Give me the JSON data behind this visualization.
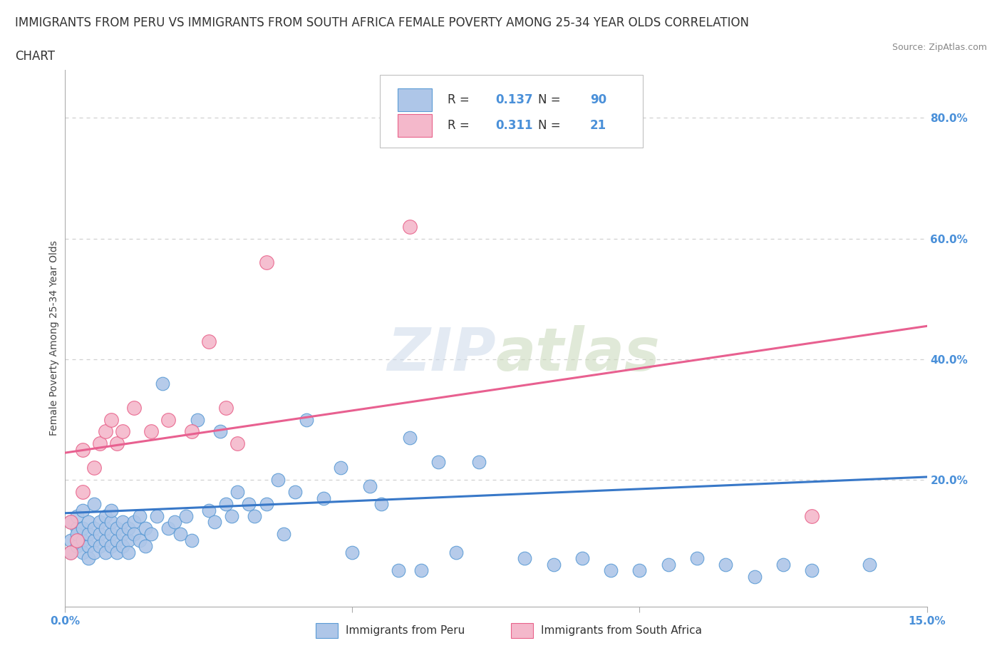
{
  "title_line1": "IMMIGRANTS FROM PERU VS IMMIGRANTS FROM SOUTH AFRICA FEMALE POVERTY AMONG 25-34 YEAR OLDS CORRELATION",
  "title_line2": "CHART",
  "source": "Source: ZipAtlas.com",
  "ylabel": "Female Poverty Among 25-34 Year Olds",
  "xlim": [
    0.0,
    0.15
  ],
  "ylim": [
    -0.01,
    0.88
  ],
  "right_yticks": [
    0.2,
    0.4,
    0.6,
    0.8
  ],
  "right_yticklabels": [
    "20.0%",
    "40.0%",
    "60.0%",
    "80.0%"
  ],
  "watermark": "ZIPatlas",
  "peru_R": "0.137",
  "peru_N": "90",
  "sa_R": "0.311",
  "sa_N": "21",
  "peru_color": "#aec6e8",
  "peru_edge_color": "#5b9bd5",
  "sa_color": "#f4b8cb",
  "sa_edge_color": "#e8628a",
  "peru_line_color": "#3878c8",
  "sa_line_color": "#e86090",
  "legend_label_peru": "Immigrants from Peru",
  "legend_label_sa": "Immigrants from South Africa",
  "peru_x": [
    0.001,
    0.001,
    0.001,
    0.002,
    0.002,
    0.002,
    0.002,
    0.003,
    0.003,
    0.003,
    0.003,
    0.004,
    0.004,
    0.004,
    0.004,
    0.005,
    0.005,
    0.005,
    0.005,
    0.006,
    0.006,
    0.006,
    0.007,
    0.007,
    0.007,
    0.007,
    0.008,
    0.008,
    0.008,
    0.008,
    0.009,
    0.009,
    0.009,
    0.01,
    0.01,
    0.01,
    0.011,
    0.011,
    0.011,
    0.012,
    0.012,
    0.013,
    0.013,
    0.014,
    0.014,
    0.015,
    0.016,
    0.017,
    0.018,
    0.019,
    0.02,
    0.021,
    0.022,
    0.023,
    0.025,
    0.026,
    0.027,
    0.028,
    0.029,
    0.03,
    0.032,
    0.033,
    0.035,
    0.037,
    0.038,
    0.04,
    0.042,
    0.045,
    0.048,
    0.05,
    0.053,
    0.055,
    0.058,
    0.06,
    0.062,
    0.065,
    0.068,
    0.072,
    0.08,
    0.085,
    0.09,
    0.095,
    0.1,
    0.105,
    0.11,
    0.115,
    0.12,
    0.125,
    0.13,
    0.14
  ],
  "peru_y": [
    0.13,
    0.1,
    0.08,
    0.12,
    0.09,
    0.11,
    0.14,
    0.1,
    0.12,
    0.08,
    0.15,
    0.09,
    0.11,
    0.13,
    0.07,
    0.1,
    0.12,
    0.08,
    0.16,
    0.11,
    0.13,
    0.09,
    0.1,
    0.12,
    0.14,
    0.08,
    0.11,
    0.13,
    0.09,
    0.15,
    0.1,
    0.12,
    0.08,
    0.11,
    0.13,
    0.09,
    0.1,
    0.12,
    0.08,
    0.13,
    0.11,
    0.14,
    0.1,
    0.12,
    0.09,
    0.11,
    0.14,
    0.36,
    0.12,
    0.13,
    0.11,
    0.14,
    0.1,
    0.3,
    0.15,
    0.13,
    0.28,
    0.16,
    0.14,
    0.18,
    0.16,
    0.14,
    0.16,
    0.2,
    0.11,
    0.18,
    0.3,
    0.17,
    0.22,
    0.08,
    0.19,
    0.16,
    0.05,
    0.27,
    0.05,
    0.23,
    0.08,
    0.23,
    0.07,
    0.06,
    0.07,
    0.05,
    0.05,
    0.06,
    0.07,
    0.06,
    0.04,
    0.06,
    0.05,
    0.06
  ],
  "sa_x": [
    0.001,
    0.001,
    0.002,
    0.003,
    0.003,
    0.005,
    0.006,
    0.007,
    0.008,
    0.009,
    0.01,
    0.012,
    0.015,
    0.018,
    0.022,
    0.025,
    0.028,
    0.03,
    0.035,
    0.06,
    0.13
  ],
  "sa_y": [
    0.13,
    0.08,
    0.1,
    0.25,
    0.18,
    0.22,
    0.26,
    0.28,
    0.3,
    0.26,
    0.28,
    0.32,
    0.28,
    0.3,
    0.28,
    0.43,
    0.32,
    0.26,
    0.56,
    0.62,
    0.14
  ],
  "grid_color": "#d0d0d0",
  "background_color": "#ffffff",
  "title_fontsize": 12,
  "axis_label_fontsize": 10,
  "tick_fontsize": 11,
  "legend_fontsize": 12
}
